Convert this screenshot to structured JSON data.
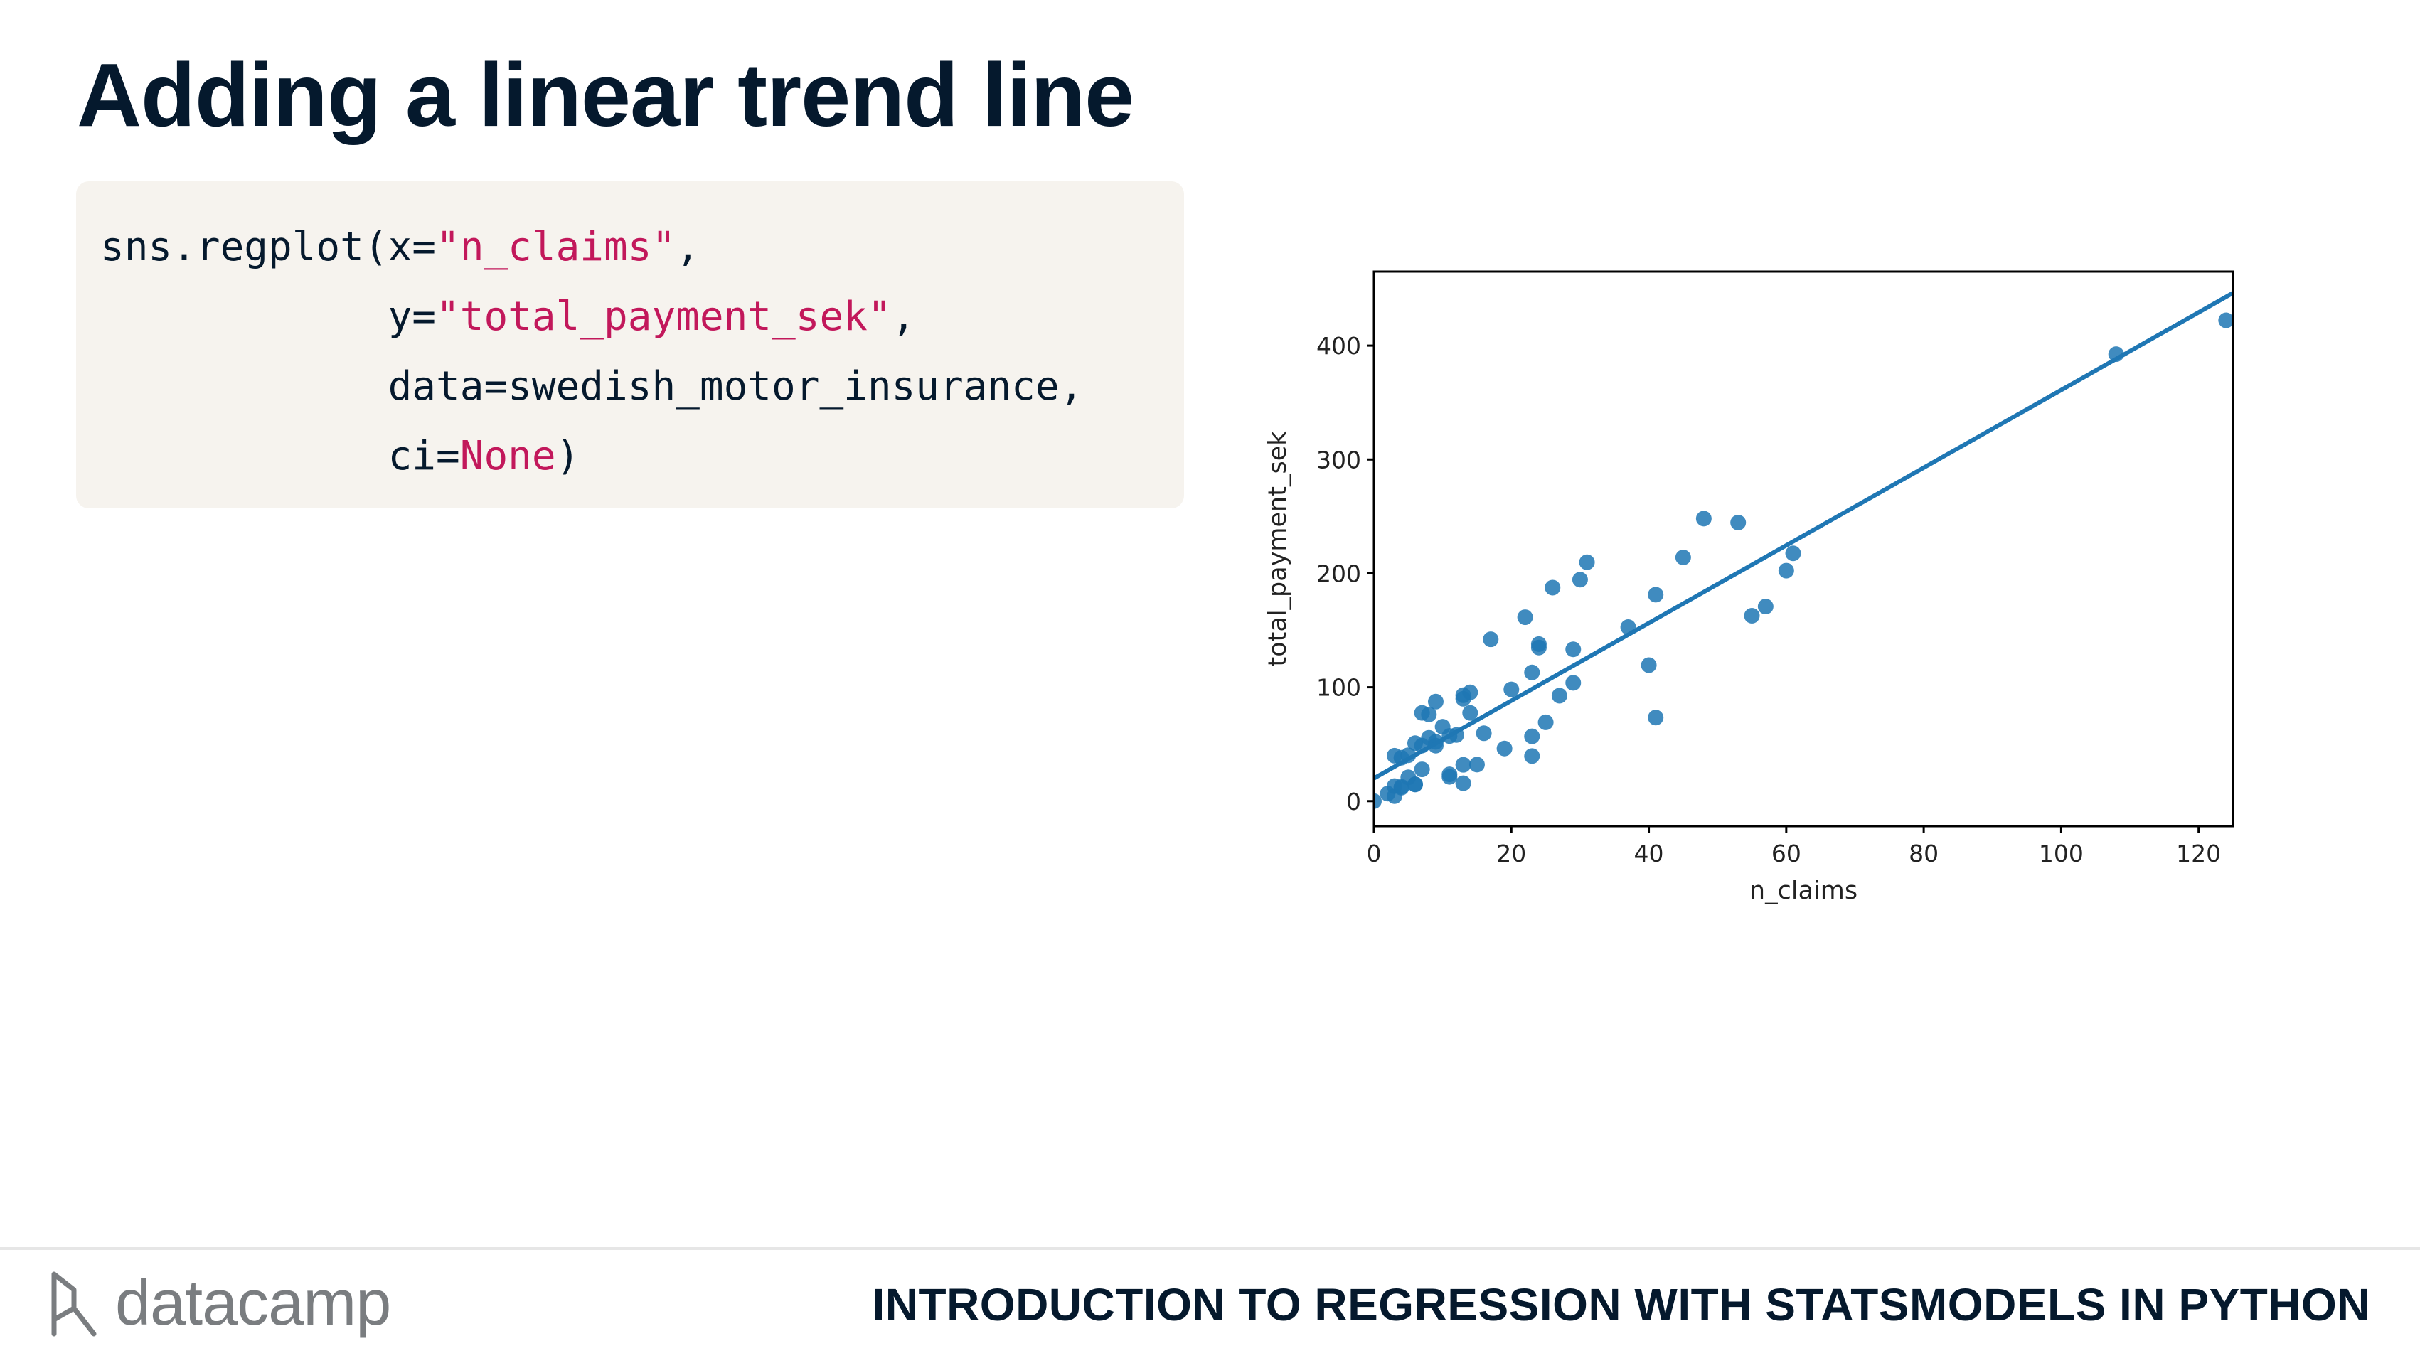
{
  "slide": {
    "title": "Adding a linear trend line"
  },
  "code": {
    "l1_pre": "sns.regplot(x=",
    "l1_str": "\"n_claims\"",
    "l1_post": ",",
    "l2_pre": "            y=",
    "l2_str": "\"total_payment_sek\"",
    "l2_post": ",",
    "l3": "            data=swedish_motor_insurance,",
    "l4_pre": "            ci=",
    "l4_kw": "None",
    "l4_post": ")"
  },
  "footer": {
    "brand": "datacamp",
    "course": "INTRODUCTION TO REGRESSION WITH STATSMODELS IN PYTHON"
  },
  "colors": {
    "point": "#1f77b4",
    "line": "#1f77b4",
    "title": "#05192d",
    "code_string": "#c2185b",
    "code_bg": "#f6f3ee"
  },
  "chart_data": {
    "type": "scatter",
    "xlabel": "n_claims",
    "ylabel": "total_payment_sek",
    "xlim": [
      0,
      125
    ],
    "ylim": [
      -22,
      465
    ],
    "xticks": [
      "0",
      "20",
      "40",
      "60",
      "80",
      "100",
      "120"
    ],
    "yticks": [
      "0",
      "100",
      "200",
      "300",
      "400"
    ],
    "grid": false,
    "trend_line": {
      "intercept": 19.99,
      "slope": 3.41
    },
    "points": [
      [
        108,
        392.5
      ],
      [
        19,
        46.2
      ],
      [
        13,
        15.7
      ],
      [
        124,
        422.2
      ],
      [
        40,
        119.4
      ],
      [
        57,
        170.9
      ],
      [
        23,
        56.9
      ],
      [
        14,
        77.5
      ],
      [
        45,
        214.0
      ],
      [
        10,
        65.3
      ],
      [
        5,
        20.9
      ],
      [
        48,
        248.1
      ],
      [
        11,
        23.5
      ],
      [
        23,
        39.6
      ],
      [
        7,
        48.8
      ],
      [
        2,
        6.6
      ],
      [
        24,
        134.9
      ],
      [
        6,
        50.9
      ],
      [
        3,
        4.4
      ],
      [
        23,
        113.0
      ],
      [
        6,
        14.8
      ],
      [
        9,
        48.7
      ],
      [
        9,
        52.1
      ],
      [
        3,
        13.2
      ],
      [
        29,
        103.9
      ],
      [
        7,
        77.5
      ],
      [
        4,
        11.8
      ],
      [
        20,
        98.1
      ],
      [
        7,
        27.9
      ],
      [
        4,
        38.1
      ],
      [
        0,
        0.0
      ],
      [
        25,
        69.2
      ],
      [
        6,
        14.6
      ],
      [
        5,
        40.3
      ],
      [
        22,
        161.5
      ],
      [
        11,
        57.2
      ],
      [
        61,
        217.6
      ],
      [
        12,
        58.1
      ],
      [
        4,
        12.6
      ],
      [
        16,
        59.6
      ],
      [
        13,
        89.9
      ],
      [
        60,
        202.4
      ],
      [
        41,
        181.3
      ],
      [
        37,
        152.8
      ],
      [
        55,
        162.8
      ],
      [
        41,
        73.4
      ],
      [
        11,
        21.3
      ],
      [
        27,
        92.6
      ],
      [
        8,
        76.1
      ],
      [
        3,
        39.9
      ],
      [
        17,
        142.1
      ],
      [
        13,
        93.0
      ],
      [
        13,
        31.9
      ],
      [
        15,
        32.1
      ],
      [
        8,
        55.6
      ],
      [
        29,
        133.3
      ],
      [
        30,
        194.5
      ],
      [
        24,
        137.9
      ],
      [
        9,
        87.4
      ],
      [
        31,
        209.8
      ],
      [
        14,
        95.5
      ],
      [
        53,
        244.6
      ],
      [
        26,
        187.5
      ]
    ]
  }
}
